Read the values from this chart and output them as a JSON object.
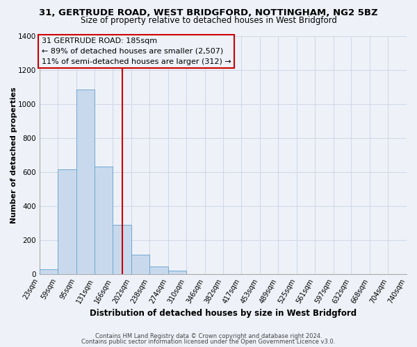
{
  "title": "31, GERTRUDE ROAD, WEST BRIDGFORD, NOTTINGHAM, NG2 5BZ",
  "subtitle": "Size of property relative to detached houses in West Bridgford",
  "xlabel": "Distribution of detached houses by size in West Bridgford",
  "ylabel": "Number of detached properties",
  "bins": [
    23,
    59,
    95,
    131,
    166,
    202,
    238,
    274,
    310,
    346,
    382,
    417,
    453,
    489,
    525,
    561,
    597,
    632,
    668,
    704,
    740
  ],
  "counts": [
    30,
    615,
    1085,
    630,
    290,
    115,
    45,
    20,
    0,
    0,
    0,
    0,
    0,
    0,
    0,
    0,
    0,
    0,
    0,
    0
  ],
  "bar_color": "#c8d9ed",
  "bar_edgecolor": "#6fa8d0",
  "property_size": 185,
  "vline_color": "#cc0000",
  "annotation_line1": "31 GERTRUDE ROAD: 185sqm",
  "annotation_line2": "← 89% of detached houses are smaller (2,507)",
  "annotation_line3": "11% of semi-detached houses are larger (312) →",
  "annotation_box_edgecolor": "#cc0000",
  "ylim": [
    0,
    1400
  ],
  "yticks": [
    0,
    200,
    400,
    600,
    800,
    1000,
    1200,
    1400
  ],
  "footer1": "Contains HM Land Registry data © Crown copyright and database right 2024.",
  "footer2": "Contains public sector information licensed under the Open Government Licence v3.0.",
  "background_color": "#eef2f8",
  "plot_bg_color": "#eef2f8",
  "grid_color": "#d0d8e8",
  "title_fontsize": 9.5,
  "subtitle_fontsize": 8.5,
  "tick_label_fontsize": 7,
  "axis_label_fontsize": 8.5,
  "annotation_fontsize": 8,
  "footer_fontsize": 6,
  "ylabel_fontsize": 8
}
